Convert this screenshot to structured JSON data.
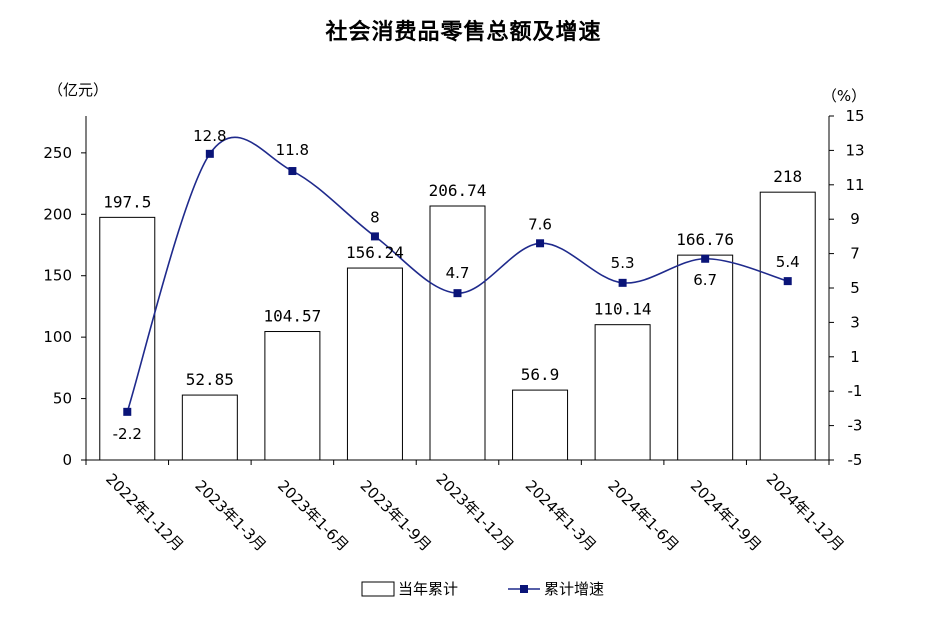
{
  "chart_data": {
    "type": "bar",
    "title": "社会消费品零售总额及增速",
    "categories": [
      "2022年1-12月",
      "2023年1-3月",
      "2023年1-6月",
      "2023年1-9月",
      "2023年1-12月",
      "2024年1-3月",
      "2024年1-6月",
      "2024年1-9月",
      "2024年1-12月"
    ],
    "series": [
      {
        "name": "当年累计",
        "type": "bar",
        "axis": "left",
        "values": [
          197.5,
          52.85,
          104.57,
          156.24,
          206.74,
          56.9,
          110.14,
          166.76,
          218
        ],
        "labels": [
          "197.5",
          "52.85",
          "104.57",
          "156.24",
          "206.74",
          "56.9",
          "110.14",
          "166.76",
          "218"
        ]
      },
      {
        "name": "累计增速",
        "type": "line",
        "axis": "right",
        "values": [
          -2.2,
          12.8,
          11.8,
          8,
          4.7,
          7.6,
          5.3,
          6.7,
          5.4
        ],
        "labels": [
          "-2.2",
          "12.8",
          "11.8",
          "8",
          "4.7",
          "7.6",
          "5.3",
          "6.7",
          "5.4"
        ]
      }
    ],
    "left_axis": {
      "unit": "（亿元）",
      "ylim": [
        0,
        280
      ],
      "ticks": [
        0,
        50,
        100,
        150,
        200,
        250
      ]
    },
    "right_axis": {
      "unit": "（%）",
      "ylim": [
        -5,
        15
      ],
      "ticks": [
        -5,
        -3,
        -1,
        1,
        3,
        5,
        7,
        9,
        11,
        13,
        15
      ]
    },
    "legend_position": "bottom-center",
    "grid": false,
    "colors": {
      "bar_fill": "#ffffff",
      "bar_stroke": "#000000",
      "line": "#1f2a8c",
      "marker": "#0a1478"
    }
  }
}
